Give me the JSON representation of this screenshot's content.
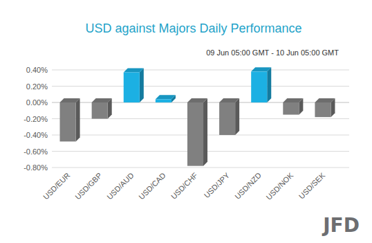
{
  "chart_data": {
    "type": "bar",
    "title": "USD against Majors Daily Performance",
    "subtitle": "09 Jun 05:00 GMT - 10 Jun 05:00 GMT",
    "annotations": [
      "JFD"
    ],
    "categories": [
      "USD/EUR",
      "USD/GBP",
      "USD/AUD",
      "USD/CAD",
      "USD/CHF",
      "USD/JPY",
      "USD/NZD",
      "USD/NOK",
      "USD/SEK"
    ],
    "values": [
      -0.48,
      -0.2,
      0.37,
      0.04,
      -0.78,
      -0.4,
      0.38,
      -0.15,
      -0.18
    ],
    "colors": [
      "#808080",
      "#808080",
      "#1cb0e3",
      "#1cb0e3",
      "#808080",
      "#808080",
      "#1cb0e3",
      "#808080",
      "#808080"
    ],
    "ylim": [
      -0.8,
      0.4
    ],
    "yticks": [
      {
        "value": -0.8,
        "label": "-0.80%"
      },
      {
        "value": -0.6,
        "label": "-0.60%"
      },
      {
        "value": -0.4,
        "label": "-0.40%"
      },
      {
        "value": -0.2,
        "label": "-0.20%"
      },
      {
        "value": 0,
        "label": "0.00%"
      },
      {
        "value": 0.2,
        "label": "0.20%"
      },
      {
        "value": 0.4,
        "label": "0.40%"
      }
    ],
    "grid": true
  }
}
